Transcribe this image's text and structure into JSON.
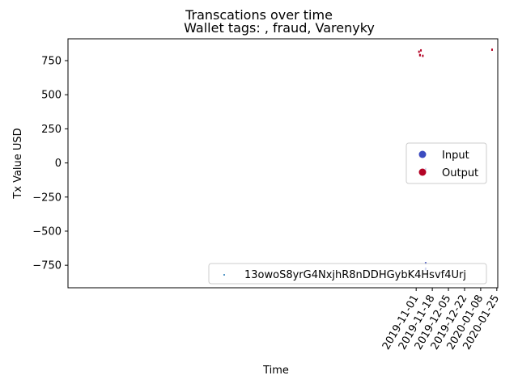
{
  "chart_data": {
    "type": "scatter",
    "suptitle": "Transcations over time",
    "title": "Wallet tags: , fraud, Varenyky",
    "xlabel": "Time",
    "ylabel": "Tx Value USD",
    "x_range": [
      "2018-10-30",
      "2020-01-26"
    ],
    "ylim": [
      -915,
      910
    ],
    "x_ticks": [
      "2019-11-01",
      "2019-11-18",
      "2019-12-05",
      "2019-12-22",
      "2020-01-08",
      "2020-01-25"
    ],
    "y_ticks": [
      -750,
      -500,
      -250,
      0,
      250,
      500,
      750
    ],
    "grid": false,
    "legends": {
      "color_legend": {
        "placement": "center-right",
        "entries": [
          {
            "label": "Input",
            "color": "#3b4cc0"
          },
          {
            "label": "Output",
            "color": "#b40426"
          }
        ]
      },
      "series_legend": {
        "placement": "lower-right",
        "entries": [
          {
            "label": "13owoS8yrG4NxjhR8nDDHGybK4Hsvf4Urj",
            "color": "#1f77b4"
          }
        ]
      }
    },
    "series": [
      {
        "name": "13owoS8yrG4NxjhR8nDDHGybK4Hsvf4Urj",
        "points": [
          {
            "x": "2019-11-04",
            "y": 815,
            "kind": "Output"
          },
          {
            "x": "2019-11-04",
            "y": -815,
            "kind": "Input"
          },
          {
            "x": "2019-11-05",
            "y": 790,
            "kind": "Output"
          },
          {
            "x": "2019-11-05",
            "y": 790,
            "kind": "Output"
          },
          {
            "x": "2019-11-05",
            "y": 50,
            "kind": "Output"
          },
          {
            "x": "2019-11-06",
            "y": 825,
            "kind": "Output"
          },
          {
            "x": "2019-11-08",
            "y": 785,
            "kind": "Output"
          },
          {
            "x": "2019-11-11",
            "y": -45,
            "kind": "Input"
          },
          {
            "x": "2019-11-11",
            "y": -735,
            "kind": "Input"
          },
          {
            "x": "2019-11-11",
            "y": -775,
            "kind": "Input"
          },
          {
            "x": "2019-11-11",
            "y": -780,
            "kind": "Input"
          },
          {
            "x": "2020-01-20",
            "y": 830,
            "kind": "Output"
          }
        ]
      }
    ]
  }
}
